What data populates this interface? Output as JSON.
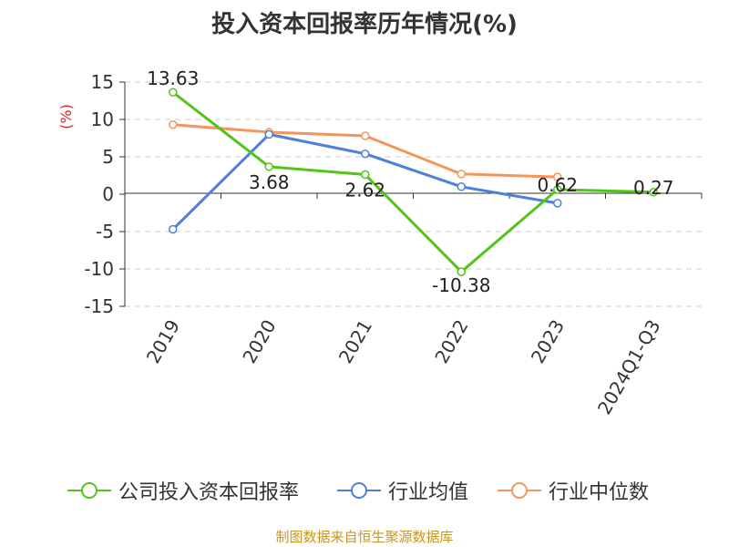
{
  "chart_data": {
    "type": "line",
    "title": "投入资本回报率历年情况(%)",
    "ylabel": "(%)",
    "categories": [
      "2019",
      "2020",
      "2021",
      "2022",
      "2023",
      "2024Q1-Q3"
    ],
    "yticks": [
      "15",
      "10",
      "5",
      "0",
      "-5",
      "-10",
      "-15"
    ],
    "ylim": [
      -15,
      15
    ],
    "grid": true,
    "legend_position": "bottom",
    "series": [
      {
        "name": "公司投入资本回报率",
        "color": "#52c41a",
        "values": [
          13.63,
          3.68,
          2.62,
          -10.38,
          0.62,
          0.27
        ],
        "labels": [
          "13.63",
          "3.68",
          "2.62",
          "-10.38",
          "0.62",
          "0.27"
        ]
      },
      {
        "name": "行业均值",
        "color": "#4e7fdc",
        "values": [
          -4.7,
          8.0,
          5.4,
          1.0,
          -1.2,
          null
        ]
      },
      {
        "name": "行业中位数",
        "color": "#f5955b",
        "values": [
          9.3,
          8.3,
          7.8,
          2.7,
          2.3,
          null
        ]
      }
    ]
  },
  "source_text": "制图数据来自恒生聚源数据库"
}
